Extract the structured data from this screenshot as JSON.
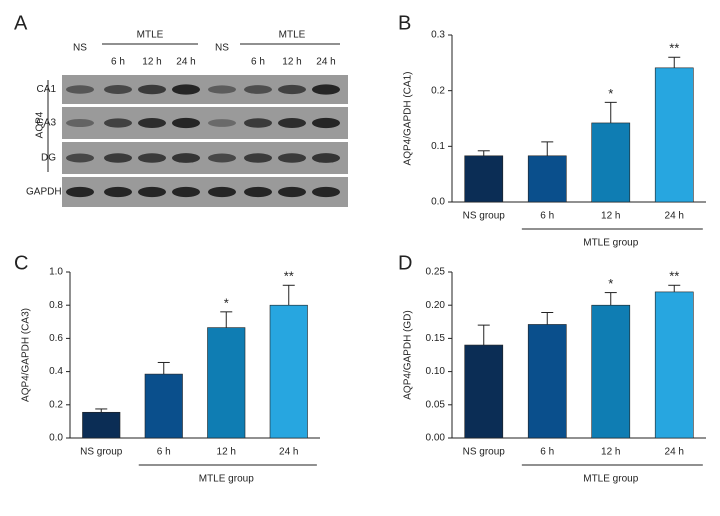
{
  "blot": {
    "panel_label": "A",
    "lanes": [
      "NS",
      "6 h",
      "12 h",
      "24 h",
      "NS",
      "6 h",
      "12 h",
      "24 h"
    ],
    "group_label": "MTLE",
    "group_label_2": "MTLE",
    "row_group_label": "AQP4",
    "rows": [
      "CA1",
      "CA3",
      "DG",
      "GAPDH"
    ]
  },
  "chart_data": [
    {
      "type": "bar",
      "panel_label": "B",
      "y_label": "AQP4/GAPDH (CA1)",
      "categories": [
        "NS group",
        "6 h",
        "12 h",
        "24 h"
      ],
      "group_label": "MTLE group",
      "values": [
        0.083,
        0.083,
        0.142,
        0.241
      ],
      "errors": [
        0.009,
        0.025,
        0.037,
        0.019
      ],
      "annotations": [
        null,
        null,
        "*",
        "**"
      ],
      "colors": [
        "#0b2d55",
        "#0a4f8c",
        "#0f7db3",
        "#27a6e0"
      ],
      "ylim": [
        0,
        0.3
      ],
      "yticks": [
        {
          "value": 0,
          "label": "0.0"
        },
        0.1,
        0.2,
        0.3
      ]
    },
    {
      "type": "bar",
      "panel_label": "C",
      "y_label": "AQP4/GAPDH (CA3)",
      "categories": [
        "NS group",
        "6 h",
        "12 h",
        "24 h"
      ],
      "group_label": "MTLE group",
      "values": [
        0.155,
        0.385,
        0.665,
        0.8
      ],
      "errors": [
        0.02,
        0.07,
        0.095,
        0.12
      ],
      "annotations": [
        null,
        null,
        "*",
        "**"
      ],
      "colors": [
        "#0b2d55",
        "#0a4f8c",
        "#0f7db3",
        "#27a6e0"
      ],
      "ylim": [
        0,
        1
      ],
      "yticks": [
        {
          "value": 0,
          "label": "0.0"
        },
        0.2,
        0.4,
        0.6,
        0.8,
        {
          "value": 1,
          "label": "1.0"
        }
      ]
    },
    {
      "type": "bar",
      "panel_label": "D",
      "y_label": "AQP4/GAPDH (GD)",
      "categories": [
        "NS group",
        "6 h",
        "12 h",
        "24 h"
      ],
      "group_label": "MTLE group",
      "values": [
        0.14,
        0.171,
        0.2,
        0.22
      ],
      "errors": [
        0.03,
        0.018,
        0.019,
        0.01
      ],
      "annotations": [
        null,
        null,
        "*",
        "**"
      ],
      "colors": [
        "#0b2d55",
        "#0a4f8c",
        "#0f7db3",
        "#27a6e0"
      ],
      "ylim": [
        0,
        0.25
      ],
      "yticks": [
        {
          "value": 0,
          "label": "0.00"
        },
        0.05,
        {
          "value": 0.1,
          "label": "0.10"
        },
        0.15,
        {
          "value": 0.2,
          "label": "0.20"
        },
        0.25
      ]
    }
  ]
}
